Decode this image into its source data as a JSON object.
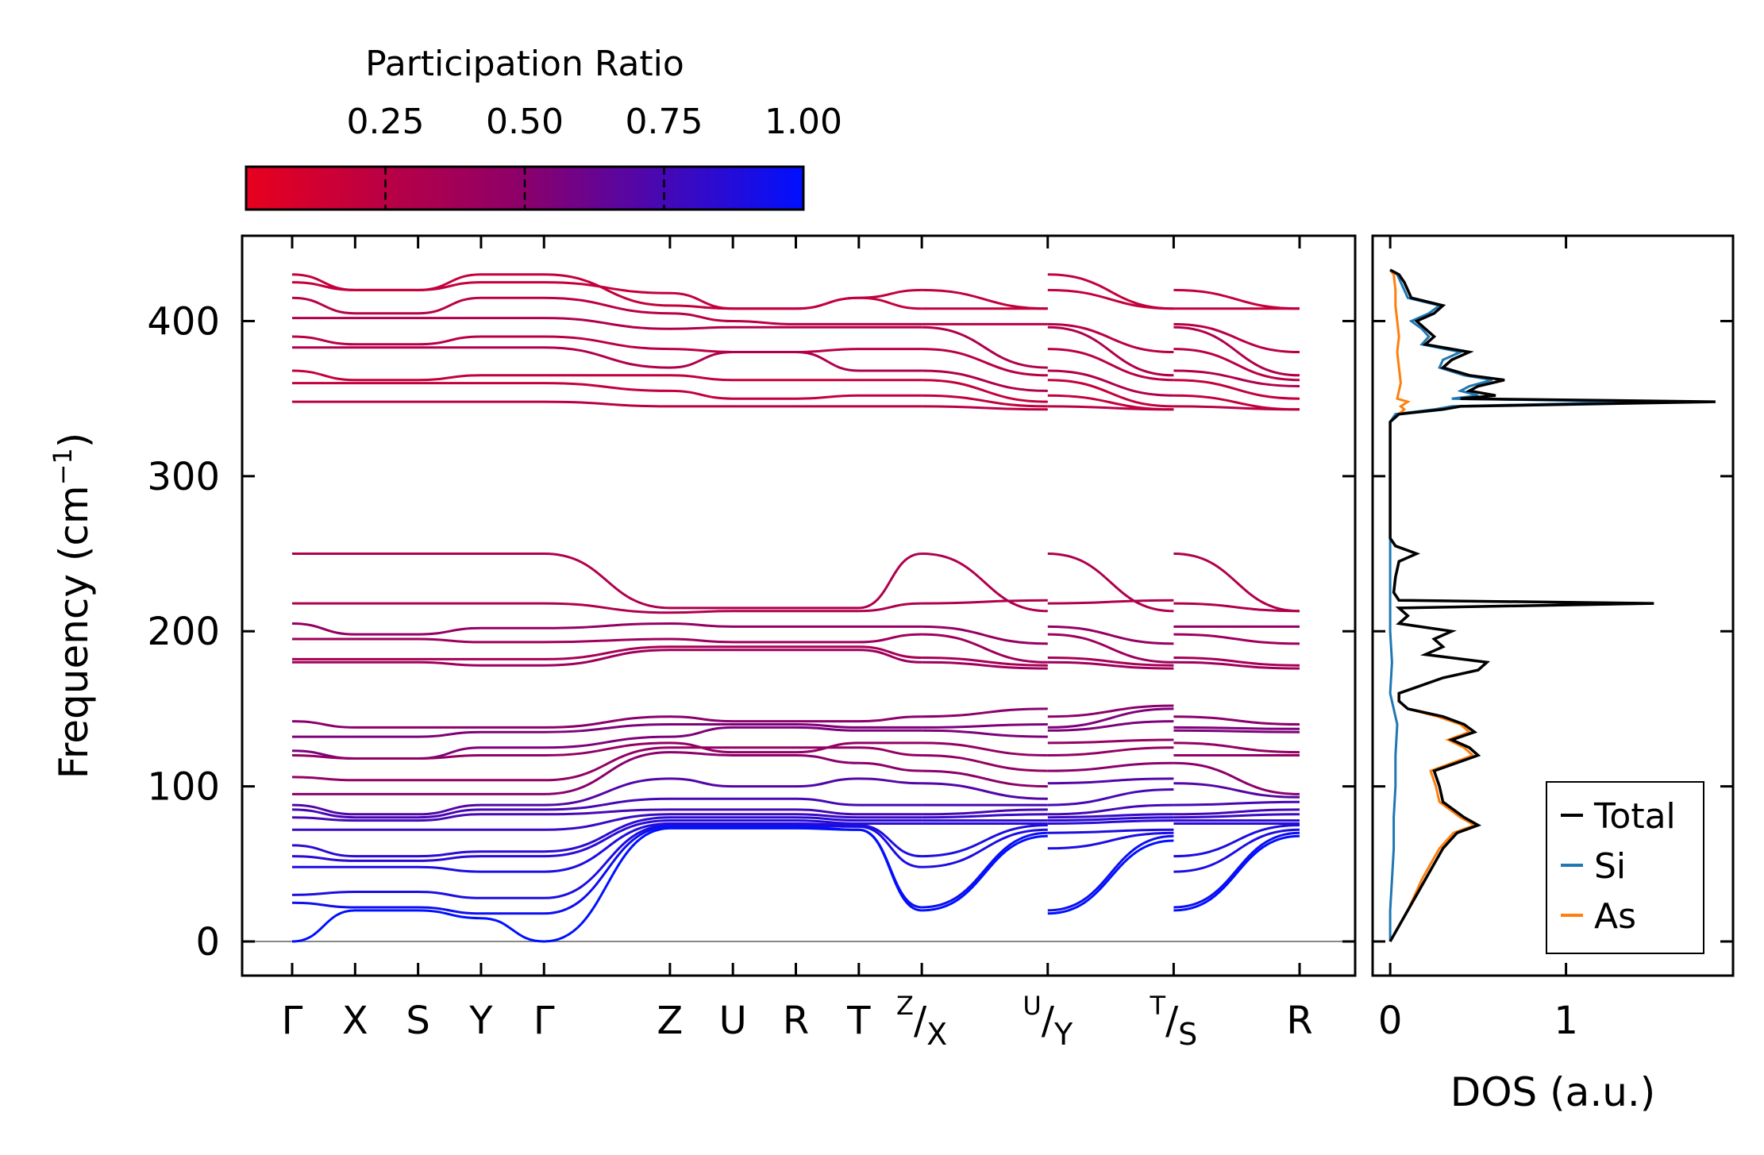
{
  "chart_data": [
    {
      "type": "line",
      "title": "",
      "ylabel": "Frequency (cm",
      "ylabel_sup": "−1",
      "ylabel_close": ")",
      "ylim": [
        -22,
        455
      ],
      "yticks": [
        "0",
        "100",
        "200",
        "300",
        "400"
      ],
      "ytick_values": [
        0,
        100,
        200,
        300,
        400
      ],
      "kpoints": [
        {
          "label": "Γ",
          "x": 0
        },
        {
          "label": "X",
          "x": 1
        },
        {
          "label": "S",
          "x": 2
        },
        {
          "label": "Y",
          "x": 3
        },
        {
          "label": "Γ",
          "x": 4
        },
        {
          "label": "Z",
          "x": 6
        },
        {
          "label": "U",
          "x": 7
        },
        {
          "label": "R",
          "x": 8
        },
        {
          "label": "T",
          "x": 9
        },
        {
          "label": "X",
          "sup": "Z",
          "x": 10
        },
        {
          "label": "Y",
          "sup": "U",
          "x": 12
        },
        {
          "label": "S",
          "sup": "T",
          "x": 14
        },
        {
          "label": "R",
          "x": 16
        }
      ],
      "segments": [
        [
          0,
          10
        ],
        [
          10,
          12
        ],
        [
          12,
          14
        ],
        [
          14,
          16
        ]
      ],
      "colorbar": {
        "label": "Participation Ratio",
        "ticks": [
          "0.25",
          "0.50",
          "0.75",
          "1.00"
        ],
        "tick_values": [
          0.25,
          0.5,
          0.75,
          1.0
        ],
        "range": [
          0.0,
          1.0
        ],
        "low_color": "#e8001e",
        "mid_color": "#8b006b",
        "high_color": "#0010ff"
      },
      "bands": [
        {
          "pr": 0.2,
          "values": [
            430,
            420,
            420,
            430,
            430,
            410,
            408,
            408,
            415,
            420,
            408,
            430,
            408,
            420,
            408
          ]
        },
        {
          "pr": 0.2,
          "values": [
            425,
            420,
            420,
            425,
            425,
            418,
            408,
            408,
            415,
            408,
            408,
            420,
            408,
            408,
            408
          ]
        },
        {
          "pr": 0.25,
          "values": [
            415,
            405,
            405,
            415,
            415,
            405,
            400,
            398,
            398,
            398,
            398,
            398,
            380,
            398,
            380
          ]
        },
        {
          "pr": 0.3,
          "values": [
            402,
            402,
            402,
            402,
            402,
            395,
            396,
            396,
            396,
            396,
            370,
            396,
            365,
            396,
            365
          ]
        },
        {
          "pr": 0.25,
          "values": [
            390,
            385,
            385,
            390,
            390,
            382,
            380,
            380,
            382,
            382,
            365,
            382,
            362,
            382,
            362
          ]
        },
        {
          "pr": 0.3,
          "values": [
            383,
            383,
            383,
            383,
            383,
            370,
            380,
            380,
            368,
            368,
            355,
            368,
            352,
            368,
            358
          ]
        },
        {
          "pr": 0.2,
          "values": [
            368,
            362,
            362,
            365,
            365,
            365,
            362,
            362,
            362,
            362,
            348,
            362,
            345,
            362,
            350
          ]
        },
        {
          "pr": 0.2,
          "values": [
            360,
            360,
            360,
            360,
            360,
            355,
            350,
            350,
            352,
            352,
            345,
            352,
            343,
            352,
            343
          ]
        },
        {
          "pr": 0.25,
          "values": [
            348,
            348,
            348,
            348,
            348,
            345,
            345,
            345,
            345,
            345,
            343,
            345,
            343,
            345,
            343
          ]
        },
        {
          "pr": 0.3,
          "values": [
            250,
            250,
            250,
            250,
            250,
            215,
            215,
            215,
            215,
            250,
            213,
            250,
            213,
            250,
            213
          ]
        },
        {
          "pr": 0.3,
          "values": [
            218,
            218,
            218,
            218,
            218,
            212,
            213,
            213,
            213,
            218,
            220,
            218,
            220,
            218,
            213
          ]
        },
        {
          "pr": 0.45,
          "values": [
            205,
            198,
            198,
            202,
            202,
            205,
            203,
            203,
            203,
            203,
            192,
            203,
            192,
            203,
            203
          ]
        },
        {
          "pr": 0.4,
          "values": [
            195,
            195,
            195,
            193,
            193,
            195,
            193,
            193,
            193,
            198,
            180,
            198,
            180,
            198,
            192
          ]
        },
        {
          "pr": 0.35,
          "values": [
            182,
            182,
            182,
            182,
            182,
            190,
            190,
            190,
            190,
            183,
            178,
            183,
            178,
            183,
            178
          ]
        },
        {
          "pr": 0.4,
          "values": [
            180,
            180,
            180,
            178,
            178,
            188,
            188,
            188,
            188,
            180,
            176,
            180,
            176,
            180,
            176
          ]
        },
        {
          "pr": 0.5,
          "values": [
            142,
            138,
            138,
            138,
            138,
            145,
            142,
            142,
            142,
            145,
            150,
            145,
            152,
            145,
            140
          ]
        },
        {
          "pr": 0.55,
          "values": [
            132,
            132,
            132,
            135,
            135,
            140,
            140,
            140,
            138,
            138,
            140,
            138,
            150,
            138,
            137
          ]
        },
        {
          "pr": 0.55,
          "values": [
            123,
            118,
            118,
            125,
            125,
            132,
            138,
            138,
            136,
            136,
            132,
            136,
            142,
            136,
            135
          ]
        },
        {
          "pr": 0.45,
          "values": [
            120,
            118,
            118,
            120,
            120,
            128,
            122,
            122,
            128,
            128,
            120,
            128,
            130,
            128,
            122
          ]
        },
        {
          "pr": 0.45,
          "values": [
            106,
            104,
            104,
            104,
            104,
            125,
            125,
            125,
            125,
            120,
            110,
            120,
            125,
            120,
            120
          ]
        },
        {
          "pr": 0.5,
          "values": [
            95,
            95,
            95,
            95,
            95,
            122,
            120,
            120,
            115,
            110,
            100,
            110,
            115,
            115,
            95
          ]
        },
        {
          "pr": 0.7,
          "values": [
            88,
            82,
            82,
            88,
            88,
            105,
            100,
            100,
            105,
            102,
            92,
            102,
            105,
            102,
            93
          ]
        },
        {
          "pr": 0.75,
          "values": [
            85,
            80,
            80,
            85,
            85,
            92,
            92,
            92,
            88,
            88,
            88,
            88,
            98,
            88,
            90
          ]
        },
        {
          "pr": 0.75,
          "values": [
            80,
            78,
            78,
            82,
            82,
            85,
            85,
            85,
            82,
            82,
            85,
            82,
            88,
            82,
            85
          ]
        },
        {
          "pr": 0.8,
          "values": [
            72,
            72,
            72,
            72,
            72,
            82,
            82,
            82,
            80,
            80,
            82,
            80,
            82,
            80,
            82
          ]
        },
        {
          "pr": 0.85,
          "values": [
            62,
            55,
            55,
            58,
            58,
            80,
            80,
            80,
            78,
            78,
            78,
            78,
            80,
            78,
            78
          ]
        },
        {
          "pr": 0.85,
          "values": [
            55,
            52,
            52,
            55,
            55,
            78,
            78,
            78,
            76,
            76,
            76,
            76,
            78,
            76,
            76
          ]
        },
        {
          "pr": 0.9,
          "values": [
            48,
            48,
            48,
            45,
            45,
            76,
            76,
            76,
            75,
            55,
            75,
            70,
            72,
            55,
            75
          ]
        },
        {
          "pr": 0.9,
          "values": [
            30,
            32,
            32,
            28,
            28,
            75,
            75,
            75,
            74,
            48,
            72,
            60,
            70,
            45,
            72
          ]
        },
        {
          "pr": 0.95,
          "values": [
            25,
            22,
            22,
            18,
            18,
            74,
            74,
            74,
            72,
            22,
            70,
            20,
            68,
            22,
            70
          ]
        },
        {
          "pr": 1.0,
          "values": [
            0,
            20,
            20,
            15,
            0,
            73,
            73,
            73,
            72,
            20,
            68,
            18,
            65,
            20,
            68
          ]
        }
      ]
    },
    {
      "type": "line",
      "title": "",
      "xlabel": "DOS (a.u.)",
      "xlim": [
        -0.1,
        1.95
      ],
      "ylim": [
        -22,
        455
      ],
      "xticks": [
        "0",
        "1"
      ],
      "xtick_values": [
        0,
        1
      ],
      "legend": [
        "Total",
        "Si",
        "As"
      ],
      "legend_position": "lower-right",
      "series": [
        {
          "name": "Total",
          "color": "#000000",
          "freq": [
            0,
            10,
            20,
            30,
            40,
            50,
            60,
            70,
            75,
            80,
            90,
            100,
            110,
            120,
            125,
            130,
            135,
            140,
            145,
            150,
            155,
            160,
            170,
            175,
            180,
            185,
            190,
            195,
            200,
            205,
            210,
            215,
            218,
            220,
            225,
            235,
            245,
            250,
            255,
            260,
            300,
            335,
            340,
            343,
            345,
            348,
            350,
            352,
            355,
            358,
            362,
            365,
            370,
            375,
            380,
            385,
            390,
            395,
            400,
            405,
            410,
            415,
            420,
            425,
            430,
            433
          ],
          "values": [
            0.0,
            0.05,
            0.1,
            0.15,
            0.2,
            0.25,
            0.3,
            0.38,
            0.5,
            0.42,
            0.3,
            0.28,
            0.25,
            0.5,
            0.45,
            0.35,
            0.48,
            0.42,
            0.3,
            0.1,
            0.05,
            0.05,
            0.3,
            0.5,
            0.55,
            0.2,
            0.3,
            0.25,
            0.35,
            0.05,
            0.1,
            0.05,
            1.5,
            0.05,
            0.02,
            0.03,
            0.05,
            0.15,
            0.03,
            0.0,
            0.0,
            0.0,
            0.05,
            0.3,
            0.4,
            1.85,
            0.4,
            0.6,
            0.45,
            0.5,
            0.65,
            0.45,
            0.3,
            0.35,
            0.45,
            0.2,
            0.25,
            0.2,
            0.15,
            0.25,
            0.3,
            0.12,
            0.1,
            0.08,
            0.05,
            0.0
          ]
        },
        {
          "name": "Si",
          "color": "#1f77b4",
          "freq": [
            0,
            20,
            40,
            60,
            80,
            100,
            120,
            140,
            160,
            180,
            200,
            220,
            240,
            250,
            260,
            300,
            335,
            340,
            343,
            345,
            348,
            350,
            352,
            355,
            358,
            362,
            365,
            370,
            375,
            380,
            385,
            390,
            395,
            400,
            405,
            410,
            415,
            420,
            425,
            430,
            433
          ],
          "values": [
            0.0,
            0.0,
            0.01,
            0.02,
            0.02,
            0.03,
            0.03,
            0.04,
            0.0,
            0.01,
            0.0,
            0.0,
            0.0,
            0.0,
            0.0,
            0.0,
            0.0,
            0.03,
            0.25,
            0.35,
            1.45,
            0.35,
            0.5,
            0.4,
            0.45,
            0.58,
            0.42,
            0.28,
            0.3,
            0.4,
            0.18,
            0.22,
            0.18,
            0.12,
            0.22,
            0.28,
            0.1,
            0.08,
            0.06,
            0.04,
            0.0
          ]
        },
        {
          "name": "As",
          "color": "#ff7f0e",
          "freq": [
            0,
            10,
            20,
            30,
            40,
            50,
            60,
            70,
            75,
            80,
            90,
            100,
            110,
            120,
            125,
            130,
            135,
            140,
            145,
            150,
            155,
            160,
            170,
            175,
            180,
            185,
            190,
            195,
            200,
            205,
            210,
            215,
            218,
            220,
            225,
            235,
            245,
            250,
            255,
            260,
            300,
            335,
            340,
            343,
            345,
            348,
            350,
            360,
            370,
            380,
            390,
            400,
            410,
            420,
            430,
            433
          ],
          "values": [
            0.0,
            0.05,
            0.1,
            0.14,
            0.18,
            0.23,
            0.28,
            0.36,
            0.48,
            0.4,
            0.28,
            0.26,
            0.23,
            0.47,
            0.42,
            0.33,
            0.45,
            0.4,
            0.27,
            0.1,
            0.05,
            0.05,
            0.3,
            0.5,
            0.55,
            0.2,
            0.3,
            0.25,
            0.35,
            0.05,
            0.1,
            0.05,
            1.5,
            0.05,
            0.02,
            0.03,
            0.05,
            0.15,
            0.03,
            0.0,
            0.0,
            0.0,
            0.05,
            0.08,
            0.06,
            0.1,
            0.04,
            0.06,
            0.05,
            0.04,
            0.05,
            0.04,
            0.03,
            0.03,
            0.02,
            0.0
          ]
        }
      ]
    }
  ]
}
